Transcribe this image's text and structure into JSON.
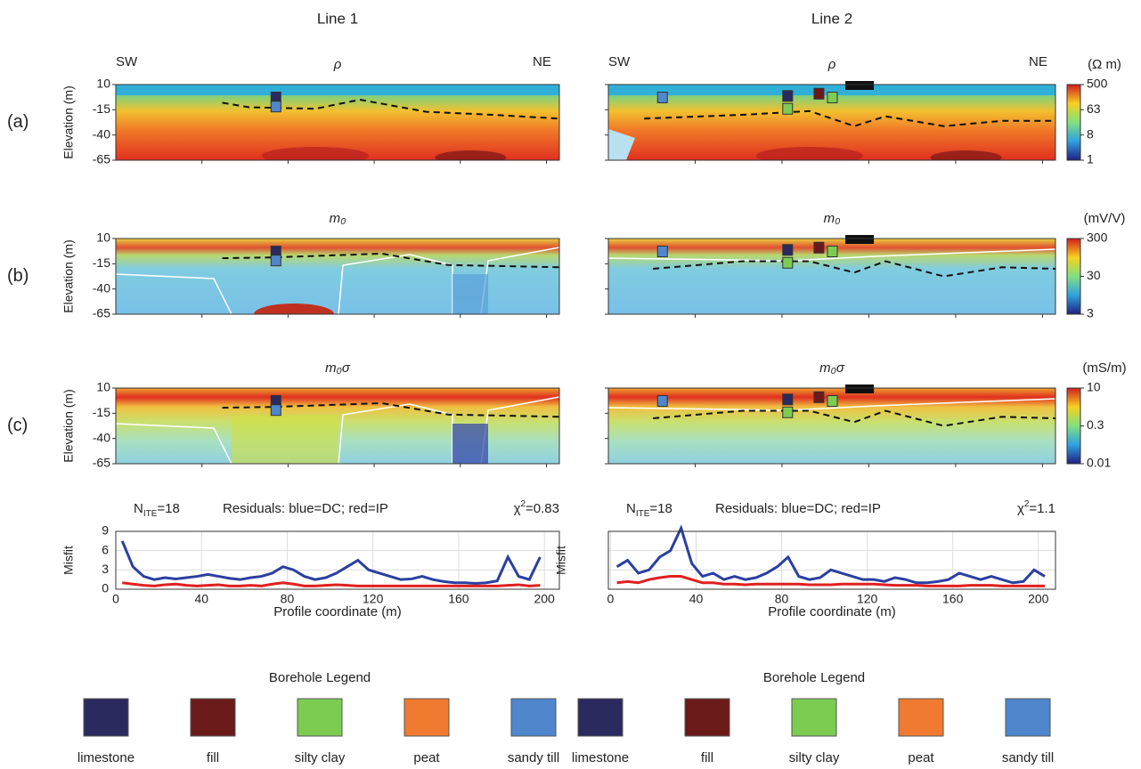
{
  "columns": [
    {
      "title": "Line 1",
      "left": "SW",
      "right": "NE"
    },
    {
      "title": "Line 2",
      "left": "SW",
      "right": "NE"
    }
  ],
  "elevation_axis": {
    "label": "Elevation (m)",
    "ticks": [
      10,
      -15,
      -40,
      -65
    ]
  },
  "rows": [
    {
      "label": "(a)",
      "param": "ρ",
      "unit": "(Ω m)",
      "colorbar_ticks": [
        500,
        63,
        8,
        1
      ]
    },
    {
      "label": "(b)",
      "param": "m₀",
      "unit": "(mV/V)",
      "colorbar_ticks": [
        300,
        30,
        3
      ]
    },
    {
      "label": "(c)",
      "param": "m₀σ",
      "unit": "(mS/m)",
      "colorbar_ticks": [
        10,
        0.3,
        0.01
      ]
    }
  ],
  "chart_data": [
    {
      "type": "line",
      "iterations": {
        "base": "N",
        "sub": "ITE",
        "rest": "=18"
      },
      "subtitle": "Residuals: blue=DC; red=IP",
      "chi2": {
        "base": "χ",
        "sup": "2",
        "rest": "=0.83"
      },
      "xlabel": "Profile coordinate (m)",
      "ylabel": "Misfit",
      "xlim": [
        0,
        207
      ],
      "ylim": [
        0,
        9
      ],
      "xticks": [
        0,
        40,
        80,
        120,
        160,
        200
      ],
      "yticks": [
        0,
        3,
        6,
        9
      ],
      "grid": true,
      "x": [
        3,
        8,
        13,
        18,
        23,
        28,
        33,
        38,
        43,
        48,
        53,
        58,
        63,
        68,
        73,
        78,
        83,
        88,
        93,
        98,
        103,
        108,
        113,
        118,
        123,
        128,
        133,
        138,
        143,
        148,
        153,
        158,
        163,
        168,
        173,
        178,
        183,
        188,
        193,
        198
      ],
      "series": [
        {
          "name": "DC",
          "color": "#2b3fa0",
          "values": [
            7.5,
            3.5,
            2,
            1.5,
            1.8,
            1.6,
            1.8,
            2,
            2.3,
            2,
            1.7,
            1.5,
            1.8,
            2,
            2.5,
            3.5,
            3,
            2,
            1.5,
            1.8,
            2.5,
            3.5,
            4.5,
            3,
            2.5,
            2,
            1.5,
            1.6,
            2,
            1.5,
            1.2,
            1,
            1,
            0.9,
            1,
            1.3,
            5,
            2,
            1.5,
            5
          ]
        },
        {
          "name": "IP",
          "color": "#e02020",
          "values": [
            1,
            0.8,
            0.6,
            0.5,
            0.7,
            0.8,
            0.6,
            0.5,
            0.6,
            0.7,
            0.5,
            0.5,
            0.6,
            0.5,
            0.8,
            1,
            0.8,
            0.5,
            0.5,
            0.6,
            0.7,
            0.6,
            0.5,
            0.5,
            0.5,
            0.5,
            0.5,
            0.5,
            0.5,
            0.5,
            0.5,
            0.5,
            0.5,
            0.5,
            0.5,
            0.5,
            0.6,
            0.7,
            0.5,
            0.6
          ]
        }
      ]
    },
    {
      "type": "line",
      "iterations": {
        "base": "N",
        "sub": "ITE",
        "rest": "=18"
      },
      "subtitle": "Residuals: blue=DC; red=IP",
      "chi2": {
        "base": "χ",
        "sup": "2",
        "rest": "=1.1"
      },
      "xlabel": "Profile coordinate (m)",
      "ylabel": "Misfit",
      "xlim": [
        -1,
        208
      ],
      "ylim": [
        0,
        9
      ],
      "xticks": [
        0,
        40,
        80,
        120,
        160,
        200
      ],
      "yticks": [
        0,
        3,
        6,
        9
      ],
      "grid": true,
      "x": [
        3,
        8,
        13,
        18,
        23,
        28,
        33,
        38,
        43,
        48,
        53,
        58,
        63,
        68,
        73,
        78,
        83,
        88,
        93,
        98,
        103,
        108,
        113,
        118,
        123,
        128,
        133,
        138,
        143,
        148,
        153,
        158,
        163,
        168,
        173,
        178,
        183,
        188,
        193,
        198,
        203
      ],
      "series": [
        {
          "name": "DC",
          "color": "#2b3fa0",
          "values": [
            3.5,
            4.5,
            2.5,
            3,
            5,
            6,
            9.5,
            4,
            2,
            2.5,
            1.5,
            2,
            1.5,
            1.8,
            2.5,
            3.5,
            5,
            2,
            1.5,
            1.8,
            3,
            2.5,
            2,
            1.5,
            1.5,
            1.2,
            1.8,
            1.5,
            1,
            1,
            1.2,
            1.5,
            2.5,
            2,
            1.5,
            2,
            1.5,
            1,
            1.2,
            3,
            2
          ]
        },
        {
          "name": "IP",
          "color": "#e02020",
          "values": [
            1,
            1.2,
            1,
            1.5,
            1.8,
            2,
            2,
            1.5,
            1,
            1,
            0.8,
            0.8,
            0.7,
            0.8,
            0.8,
            0.8,
            0.8,
            0.8,
            0.7,
            0.7,
            0.7,
            0.8,
            0.8,
            0.8,
            0.8,
            0.7,
            0.6,
            0.6,
            0.6,
            0.5,
            0.5,
            0.5,
            0.5,
            0.6,
            0.6,
            0.6,
            0.5,
            0.5,
            0.5,
            0.5,
            0.5
          ]
        }
      ]
    }
  ],
  "legend": {
    "title": "Borehole Legend",
    "items": [
      {
        "label": "limestone",
        "color": "#2a2a5e"
      },
      {
        "label": "fill",
        "color": "#6b1a1a"
      },
      {
        "label": "silty clay",
        "color": "#7ccc52"
      },
      {
        "label": "peat",
        "color": "#f07a30"
      },
      {
        "label": "sandy till",
        "color": "#4f86cc"
      }
    ]
  }
}
